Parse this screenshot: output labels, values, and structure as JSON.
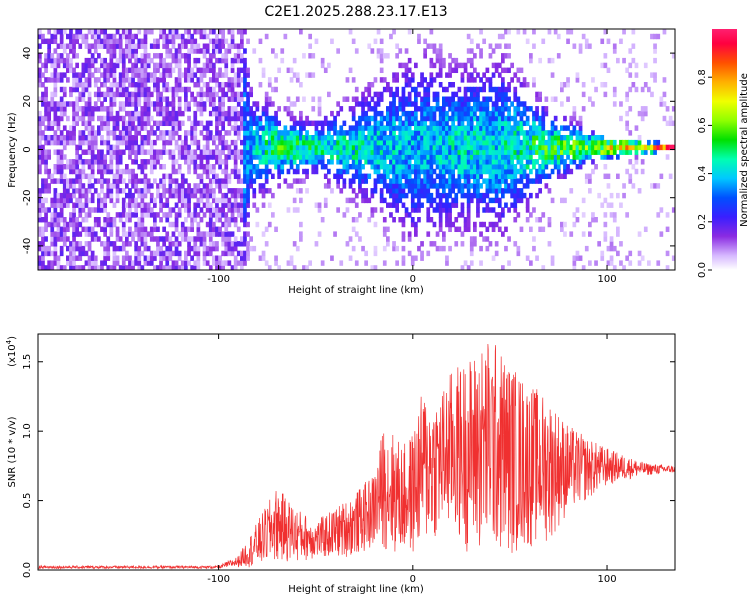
{
  "figure": {
    "title": "C2E1.2025.288.23.17.E13"
  },
  "chart_data": [
    {
      "type": "heatmap",
      "title": "C2E1.2025.288.23.17.E13",
      "xlabel": "Height of straight line (km)",
      "ylabel": "Frequency (Hz)",
      "xlim": [
        -193,
        135
      ],
      "ylim": [
        -50,
        50
      ],
      "x_ticks": [
        -100,
        0,
        100
      ],
      "y_ticks": [
        -40,
        -20,
        0,
        20,
        40
      ],
      "colorbar": {
        "label": "Normalized spectral amplitude",
        "range": [
          0.0,
          1.0
        ],
        "ticks": [
          0.0,
          0.2,
          0.4,
          0.6,
          0.8
        ],
        "tick_labels": [
          "0.0",
          "0.2",
          "0.4",
          "0.6",
          "0.8"
        ]
      },
      "ridge": [
        {
          "x": -193,
          "spread": 50,
          "amp": 0.25
        },
        {
          "x": -90,
          "spread": 50,
          "amp": 0.25
        },
        {
          "x": -85,
          "spread": 14,
          "amp": 0.3
        },
        {
          "x": -70,
          "spread": 8,
          "amp": 0.45
        },
        {
          "x": -50,
          "spread": 6,
          "amp": 0.4
        },
        {
          "x": -20,
          "spread": 14,
          "amp": 0.35
        },
        {
          "x": 0,
          "spread": 22,
          "amp": 0.3
        },
        {
          "x": 20,
          "spread": 18,
          "amp": 0.35
        },
        {
          "x": 45,
          "spread": 20,
          "amp": 0.35
        },
        {
          "x": 70,
          "spread": 8,
          "amp": 0.45
        },
        {
          "x": 90,
          "spread": 4,
          "amp": 0.5
        },
        {
          "x": 110,
          "spread": 2,
          "amp": 0.7
        },
        {
          "x": 135,
          "spread": 1,
          "amp": 0.9
        }
      ]
    },
    {
      "type": "line",
      "xlabel": "Height of straight line (km)",
      "ylabel": "SNR (10 * v/v)",
      "y_scale_label": "(x10",
      "y_scale_exponent": "4",
      "y_scale_suffix": ")",
      "xlim": [
        -193,
        135
      ],
      "ylim": [
        0,
        1.7
      ],
      "x_ticks": [
        -100,
        0,
        100
      ],
      "y_ticks": [
        0.0,
        0.5,
        1.0,
        1.5
      ],
      "y_tick_labels": [
        "0.0",
        "0.5",
        "1.0",
        "1.5"
      ],
      "color": "#f03030",
      "series": [
        {
          "name": "SNR",
          "envelope_x": [
            -193,
            -100,
            -90,
            -80,
            -70,
            -60,
            -50,
            -40,
            -30,
            -20,
            -15,
            -10,
            -5,
            0,
            5,
            10,
            15,
            20,
            30,
            40,
            50,
            60,
            70,
            80,
            90,
            100,
            110,
            120,
            135
          ],
          "envelope_min": [
            0.01,
            0.01,
            0.02,
            0.02,
            0.05,
            0.05,
            0.08,
            0.08,
            0.1,
            0.15,
            0.15,
            0.1,
            0.1,
            0.1,
            0.15,
            0.2,
            0.25,
            0.25,
            0.1,
            0.1,
            0.1,
            0.15,
            0.2,
            0.4,
            0.5,
            0.6,
            0.65,
            0.68,
            0.7
          ],
          "envelope_max": [
            0.03,
            0.03,
            0.1,
            0.35,
            0.6,
            0.45,
            0.35,
            0.45,
            0.55,
            0.7,
            1.05,
            1.0,
            0.9,
            1.0,
            1.3,
            1.25,
            1.3,
            1.45,
            1.55,
            1.7,
            1.5,
            1.35,
            1.25,
            1.05,
            0.95,
            0.88,
            0.82,
            0.77,
            0.75
          ]
        }
      ]
    }
  ]
}
